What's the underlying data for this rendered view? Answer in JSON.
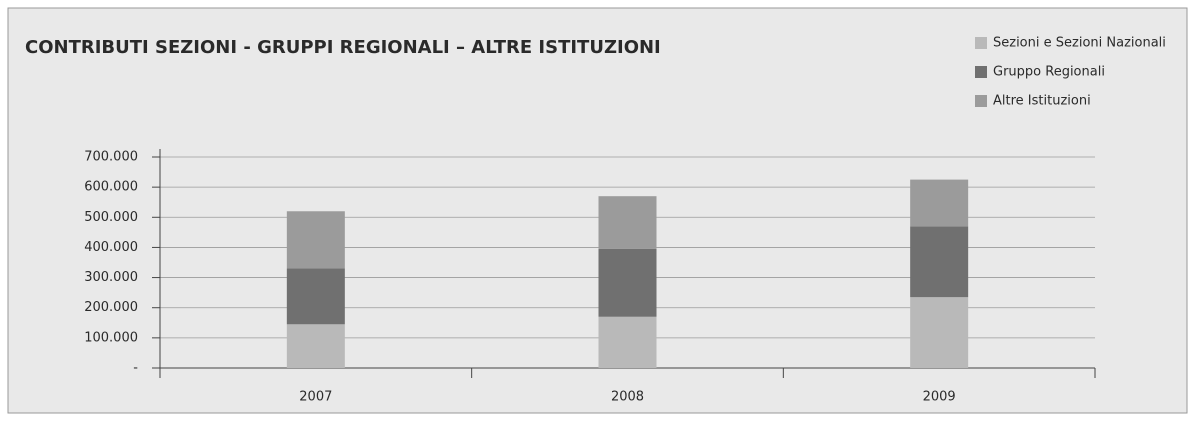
{
  "chart_data": {
    "type": "stacked_bar",
    "title": "CONTRIBUTI SEZIONI - GRUPPI REGIONALI – ALTRE ISTITUZIONI",
    "categories": [
      "2007",
      "2008",
      "2009"
    ],
    "series": [
      {
        "name": "Sezioni e Sezioni Nazionali",
        "color": "#b9b9b9",
        "values": [
          145000,
          170000,
          235000
        ]
      },
      {
        "name": "Gruppo Regionali",
        "color": "#707070",
        "values": [
          185000,
          225000,
          235000
        ]
      },
      {
        "name": "Altre Istituzioni",
        "color": "#9b9b9b",
        "values": [
          190000,
          175000,
          155000
        ]
      }
    ],
    "ylim": [
      0,
      700000
    ],
    "yticks": [
      {
        "value": 0,
        "label": "-"
      },
      {
        "value": 100000,
        "label": "100.000"
      },
      {
        "value": 200000,
        "label": "200.000"
      },
      {
        "value": 300000,
        "label": "300.000"
      },
      {
        "value": 400000,
        "label": "400.000"
      },
      {
        "value": 500000,
        "label": "500.000"
      },
      {
        "value": 600000,
        "label": "600.000"
      },
      {
        "value": 700000,
        "label": "700.000"
      }
    ],
    "grid": true,
    "legend": "top-right"
  }
}
